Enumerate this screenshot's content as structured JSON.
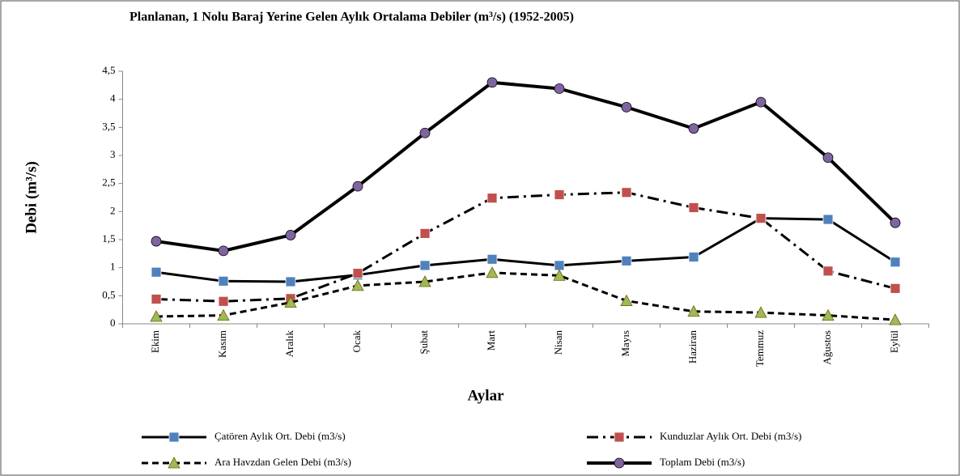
{
  "chart_data": {
    "type": "line",
    "title": "Planlanan, 1 Nolu Baraj Yerine Gelen Aylık Ortalama Debiler  (m³/s) (1952-2005)",
    "x_label": "Aylar",
    "y_label": "Debi (m³/s)",
    "categories": [
      "Ekim",
      "Kasım",
      "Aralık",
      "Ocak",
      "Şubat",
      "Mart",
      "Nisan",
      "Mayıs",
      "Haziran",
      "Temmuz",
      "Ağustos",
      "Eylül"
    ],
    "ylim": [
      0,
      4.5
    ],
    "yticks": [
      0,
      {
        "value": 0.5,
        "label": "0,5"
      },
      1,
      {
        "value": 1.5,
        "label": "1,5"
      },
      2,
      {
        "value": 2.5,
        "label": "2,5"
      },
      3,
      {
        "value": 3.5,
        "label": "3,5"
      },
      4,
      {
        "value": 4.5,
        "label": "4,5"
      }
    ],
    "grid": false,
    "series": [
      {
        "name": "Çatören Aylık Ort. Debi (m3/s)",
        "color": "#4f81bd",
        "line_style": "solid",
        "marker": "square",
        "values": [
          0.92,
          0.76,
          0.75,
          0.87,
          1.04,
          1.15,
          1.04,
          1.12,
          1.19,
          1.88,
          1.86,
          1.1
        ]
      },
      {
        "name": "Kunduzlar Aylık Ort. Debi (m3/s)",
        "color": "#c0504d",
        "line_style": "dashdot",
        "marker": "square",
        "values": [
          0.44,
          0.4,
          0.45,
          0.9,
          1.61,
          2.24,
          2.3,
          2.34,
          2.07,
          1.88,
          0.94,
          0.63
        ]
      },
      {
        "name": "Ara Havzdan Gelen Debi (m3/s)",
        "color": "#9bbb59",
        "line_style": "dashed",
        "marker": "triangle",
        "values": [
          0.13,
          0.15,
          0.38,
          0.68,
          0.75,
          0.91,
          0.86,
          0.41,
          0.22,
          0.2,
          0.15,
          0.07
        ]
      },
      {
        "name": "Toplam Debi (m3/s)",
        "color": "#8064a2",
        "line_style": "thick",
        "marker": "circle",
        "values": [
          1.47,
          1.3,
          1.58,
          2.45,
          3.4,
          4.3,
          4.19,
          3.86,
          3.48,
          3.95,
          2.96,
          1.8
        ]
      }
    ]
  }
}
